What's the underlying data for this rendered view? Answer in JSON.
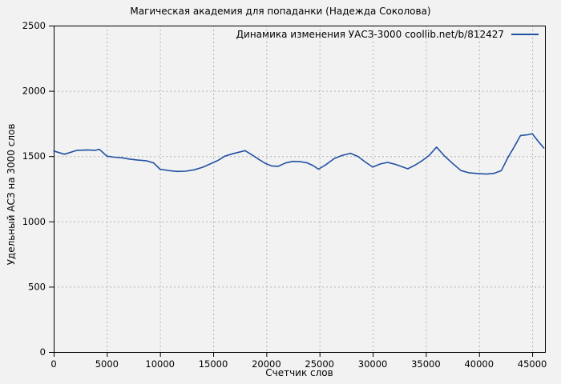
{
  "colors": {
    "background": "#f2f2f2",
    "plot_border": "#000000",
    "grid": "#b3b3b3",
    "text": "#000000",
    "series_line": "#2151a3"
  },
  "chart_data": {
    "type": "line",
    "title": "Магическая академия для попаданки (Надежда Соколова)",
    "xlabel": "Счетчик слов",
    "ylabel": "Удельный АСЗ на 3000 слов",
    "xlim": [
      0,
      46200
    ],
    "ylim": [
      0,
      2500
    ],
    "x_ticks": [
      0,
      5000,
      10000,
      15000,
      20000,
      25000,
      30000,
      35000,
      40000,
      45000
    ],
    "y_ticks": [
      0,
      500,
      1000,
      1500,
      2000,
      2500
    ],
    "grid": true,
    "grid_style": "dashed",
    "legend_position": "top-right",
    "series": [
      {
        "name": "Динамика изменения УАСЗ-3000 coollib.net/b/812427",
        "color": "#2151a3",
        "x": [
          0,
          1000,
          2200,
          3200,
          3900,
          4300,
          5000,
          5700,
          6400,
          7100,
          7900,
          8700,
          9400,
          10000,
          10800,
          11600,
          12400,
          13200,
          14000,
          14700,
          15400,
          16100,
          16800,
          17400,
          18000,
          18600,
          19300,
          19900,
          20500,
          21100,
          21800,
          22500,
          23200,
          23800,
          24400,
          24900,
          25600,
          26400,
          27100,
          27900,
          28600,
          29300,
          30000,
          30700,
          31400,
          32100,
          32800,
          33300,
          34000,
          34700,
          35300,
          36000,
          36700,
          37500,
          38300,
          39100,
          39900,
          40700,
          41400,
          42100,
          42700,
          43300,
          43900,
          44500,
          45000,
          45600,
          46100
        ],
        "y": [
          1540,
          1515,
          1545,
          1548,
          1545,
          1552,
          1500,
          1492,
          1488,
          1478,
          1470,
          1465,
          1448,
          1400,
          1390,
          1383,
          1385,
          1395,
          1415,
          1440,
          1465,
          1500,
          1518,
          1530,
          1542,
          1512,
          1475,
          1445,
          1425,
          1422,
          1448,
          1460,
          1458,
          1450,
          1428,
          1400,
          1435,
          1483,
          1505,
          1522,
          1498,
          1455,
          1416,
          1440,
          1452,
          1438,
          1418,
          1403,
          1432,
          1468,
          1505,
          1570,
          1505,
          1445,
          1390,
          1372,
          1367,
          1363,
          1368,
          1390,
          1488,
          1570,
          1658,
          1663,
          1672,
          1610,
          1562
        ]
      }
    ]
  }
}
